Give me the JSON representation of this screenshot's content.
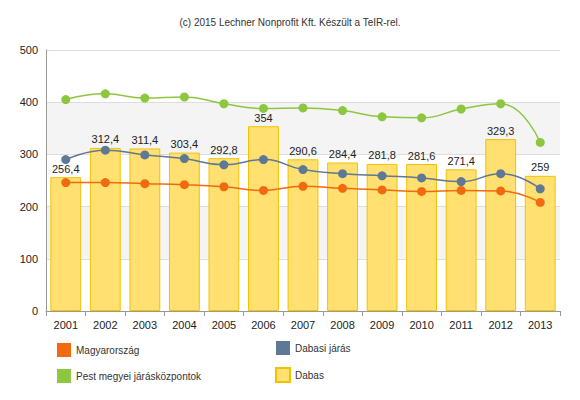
{
  "chart_data": {
    "type": "bar",
    "title": "(c) 2015 Lechner Nonprofit Kft. Készült a TeIR-rel.",
    "categories": [
      "2001",
      "2002",
      "2003",
      "2004",
      "2005",
      "2006",
      "2007",
      "2008",
      "2009",
      "2010",
      "2011",
      "2012",
      "2013"
    ],
    "series": [
      {
        "name": "Magyarország",
        "type": "line",
        "color": "#f26a10",
        "marker": "circle",
        "values": [
          246,
          246,
          244,
          242,
          238,
          231,
          239,
          235,
          232,
          229,
          231,
          230,
          208
        ]
      },
      {
        "name": "Dabasi járás",
        "type": "line",
        "color": "#5f7894",
        "marker": "circle",
        "values": [
          290,
          308,
          299,
          292,
          280,
          290,
          271,
          263,
          259,
          255,
          248,
          263,
          234
        ]
      },
      {
        "name": "Pest megyei járásközpontok",
        "type": "line",
        "color": "#8dc63f",
        "marker": "circle",
        "values": [
          405,
          416,
          408,
          410,
          397,
          388,
          389,
          384,
          372,
          370,
          387,
          397,
          323
        ]
      },
      {
        "name": "Dabas",
        "type": "bar",
        "color": "#ffe070",
        "data_labels": true,
        "values": [
          256.4,
          312.4,
          311.4,
          303.4,
          292.8,
          354,
          290.6,
          284.4,
          281.8,
          281.6,
          271.4,
          329.3,
          259
        ],
        "value_labels": [
          "256,4",
          "312,4",
          "311,4",
          "303,4",
          "292,8",
          "354",
          "290,6",
          "284,4",
          "281,8",
          "281,6",
          "271,4",
          "329,3",
          "259"
        ]
      }
    ],
    "ylim": [
      0,
      500
    ],
    "yticks": [
      0,
      100,
      200,
      300,
      400,
      500
    ],
    "grid": true,
    "legend": "bottom"
  }
}
